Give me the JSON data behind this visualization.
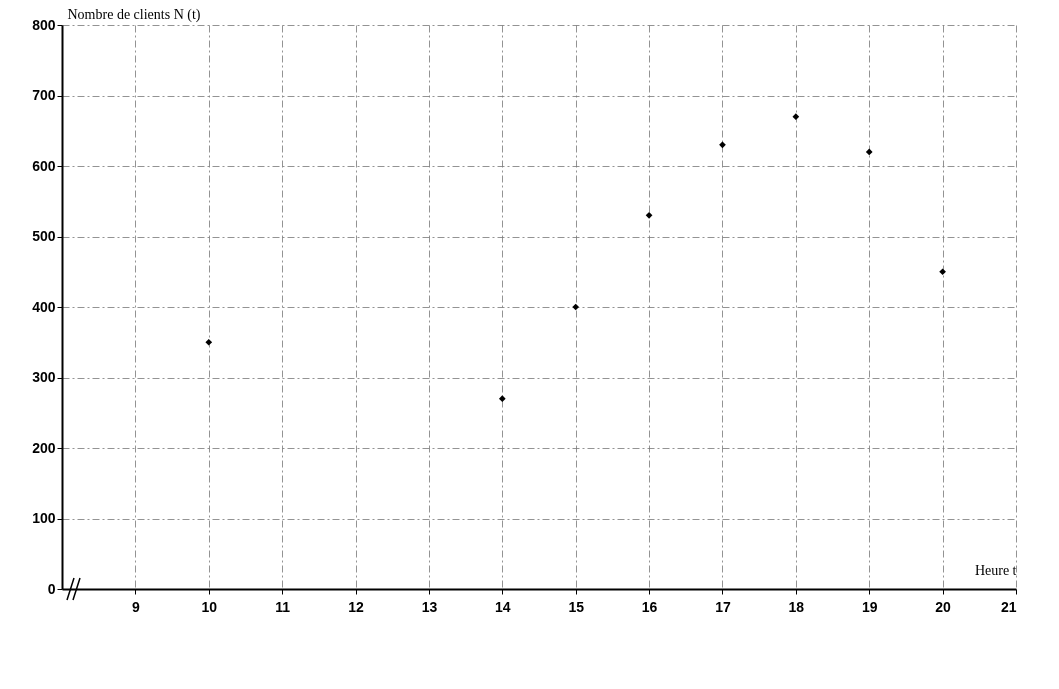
{
  "chart_data": {
    "type": "scatter",
    "xlabel": "Heure t",
    "ylabel": "Nombre de clients N (t)",
    "x": [
      10,
      14,
      15,
      16,
      17,
      18,
      19,
      20
    ],
    "values": [
      350,
      270,
      400,
      530,
      630,
      670,
      620,
      450
    ],
    "color": "#000000",
    "marker": "diamond",
    "grid": true,
    "xlim": [
      8,
      21
    ],
    "xticks": [
      9,
      10,
      11,
      12,
      13,
      14,
      15,
      16,
      17,
      18,
      19,
      20,
      21
    ],
    "ylim": [
      0,
      800
    ],
    "yticks": [
      0,
      100,
      200,
      300,
      400,
      500,
      600,
      700,
      800
    ]
  }
}
